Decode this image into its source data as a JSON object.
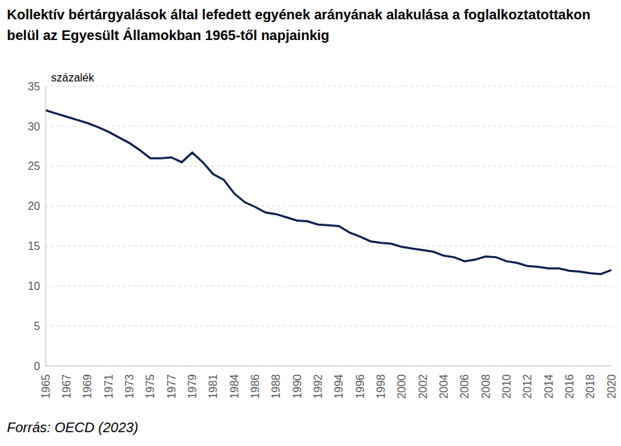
{
  "chart_data": {
    "type": "line",
    "title": "Kollektív bértárgyalások által lefedett egyének arányának alakulása a foglalkoztatottakon belül az Egyesült Államokban 1965-től napjainkig",
    "y_label": "százalék",
    "source": "Forrás: OECD (2023)",
    "categories": [
      "1965",
      null,
      "1967",
      null,
      "1969",
      null,
      "1971",
      null,
      "1973",
      null,
      "1975",
      null,
      "1977",
      null,
      "1979",
      null,
      "1981",
      null,
      "1984",
      null,
      "1986",
      null,
      "1988",
      null,
      "1990",
      null,
      "1992",
      null,
      "1994",
      null,
      "1996",
      null,
      "1998",
      null,
      "2000",
      null,
      "2002",
      null,
      "2004",
      null,
      "2006",
      null,
      "2008",
      null,
      "2010",
      null,
      "2012",
      null,
      "2014",
      null,
      "2016",
      null,
      "2018",
      null,
      "2020"
    ],
    "values": [
      32.0,
      31.6,
      31.2,
      30.8,
      30.4,
      29.9,
      29.3,
      28.6,
      27.9,
      27.0,
      26.0,
      26.0,
      26.1,
      25.5,
      26.7,
      25.5,
      24.0,
      23.3,
      21.6,
      20.5,
      19.9,
      19.2,
      19.0,
      18.6,
      18.2,
      18.1,
      17.7,
      17.6,
      17.5,
      16.7,
      16.2,
      15.6,
      15.4,
      15.3,
      14.9,
      14.7,
      14.5,
      14.3,
      13.8,
      13.6,
      13.1,
      13.3,
      13.7,
      13.6,
      13.1,
      12.9,
      12.5,
      12.4,
      12.2,
      12.2,
      11.9,
      11.8,
      11.6,
      11.5,
      12.0
    ],
    "color": "#0c1f4f",
    "ylim": [
      0,
      35
    ],
    "yticks": [
      0,
      5,
      10,
      15,
      20,
      25,
      30,
      35
    ],
    "grid": true
  }
}
